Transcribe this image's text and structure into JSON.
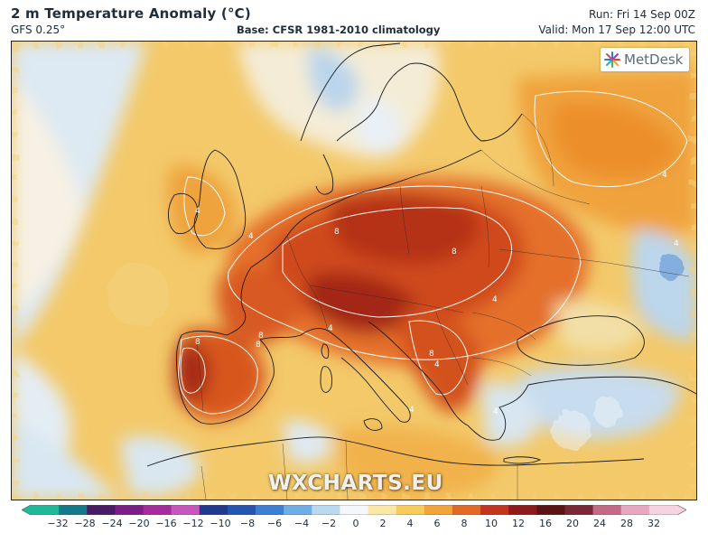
{
  "header": {
    "title": "2 m Temperature Anomaly (°C)",
    "model": "GFS 0.25°",
    "base": "Base: CFSR 1981-2010 climatology",
    "run": "Run: Fri 14 Sep 00Z",
    "valid": "Valid: Mon 17 Sep 12:00 UTC"
  },
  "brand": {
    "logo_text": "MetDesk",
    "watermark": "WXCHARTS.EU"
  },
  "legend": {
    "ticks": [
      "−32",
      "−28",
      "−24",
      "−20",
      "−16",
      "−12",
      "−10",
      "−8",
      "−6",
      "−4",
      "−2",
      "0",
      "2",
      "4",
      "6",
      "8",
      "10",
      "12",
      "16",
      "20",
      "24",
      "28",
      "32"
    ],
    "colors": [
      "#1fb99a",
      "#137a8a",
      "#4a1a66",
      "#7b1f86",
      "#a52b9e",
      "#c757bd",
      "#1f3a8e",
      "#2554b3",
      "#3d7fd4",
      "#6eaee6",
      "#b8d9f0",
      "#f4f7fb",
      "#fbe7a6",
      "#f7cc5a",
      "#f2a33a",
      "#e26a24",
      "#c4351e",
      "#8e1a1c",
      "#5a1414",
      "#7a2836",
      "#c46a86",
      "#e8a7c0",
      "#f7d3e1"
    ]
  },
  "map": {
    "contour_labels": [
      "4",
      "4",
      "4",
      "4",
      "8",
      "8",
      "8",
      "8",
      "8",
      "8",
      "4",
      "4",
      "4",
      "4",
      "4"
    ]
  }
}
